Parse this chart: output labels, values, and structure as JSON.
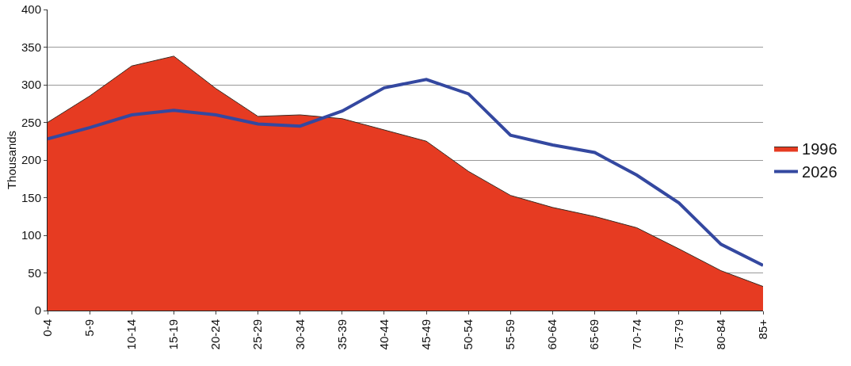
{
  "chart_data": {
    "type": "area",
    "ylabel": "Thousands",
    "categories": [
      "0-4",
      "5-9",
      "10-14",
      "15-19",
      "20-24",
      "25-29",
      "30-34",
      "35-39",
      "40-44",
      "45-49",
      "50-54",
      "55-59",
      "60-64",
      "65-69",
      "70-74",
      "75-79",
      "80-84",
      "85+"
    ],
    "series": [
      {
        "name": "1996",
        "color": "#e63b22",
        "values": [
          250,
          285,
          325,
          338,
          295,
          258,
          260,
          255,
          240,
          225,
          185,
          153,
          137,
          125,
          110,
          82,
          53,
          32
        ]
      },
      {
        "name": "2026",
        "type": "line",
        "color": "#3448a0",
        "values": [
          228,
          243,
          260,
          266,
          260,
          248,
          245,
          265,
          296,
          307,
          288,
          233,
          220,
          210,
          180,
          143,
          88,
          60
        ]
      }
    ],
    "ylim": [
      0,
      400
    ],
    "yticks": [
      0,
      50,
      100,
      150,
      200,
      250,
      300,
      350,
      400
    ],
    "grid": "y",
    "legend": "right",
    "marker": "none",
    "line_style": "solid"
  }
}
